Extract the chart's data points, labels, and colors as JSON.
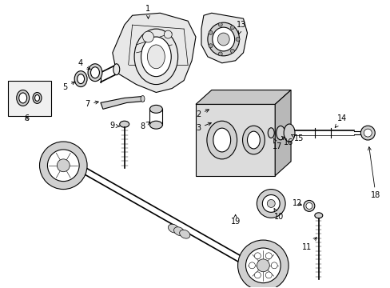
{
  "background_color": "#ffffff",
  "line_color": "#000000",
  "label_color": "#000000",
  "fig_width": 4.89,
  "fig_height": 3.6,
  "dpi": 100,
  "gray_light": "#e8e8e8",
  "gray_mid": "#d0d0d0",
  "gray_dark": "#a0a0a0",
  "gray_plate": "#dcdcdc"
}
